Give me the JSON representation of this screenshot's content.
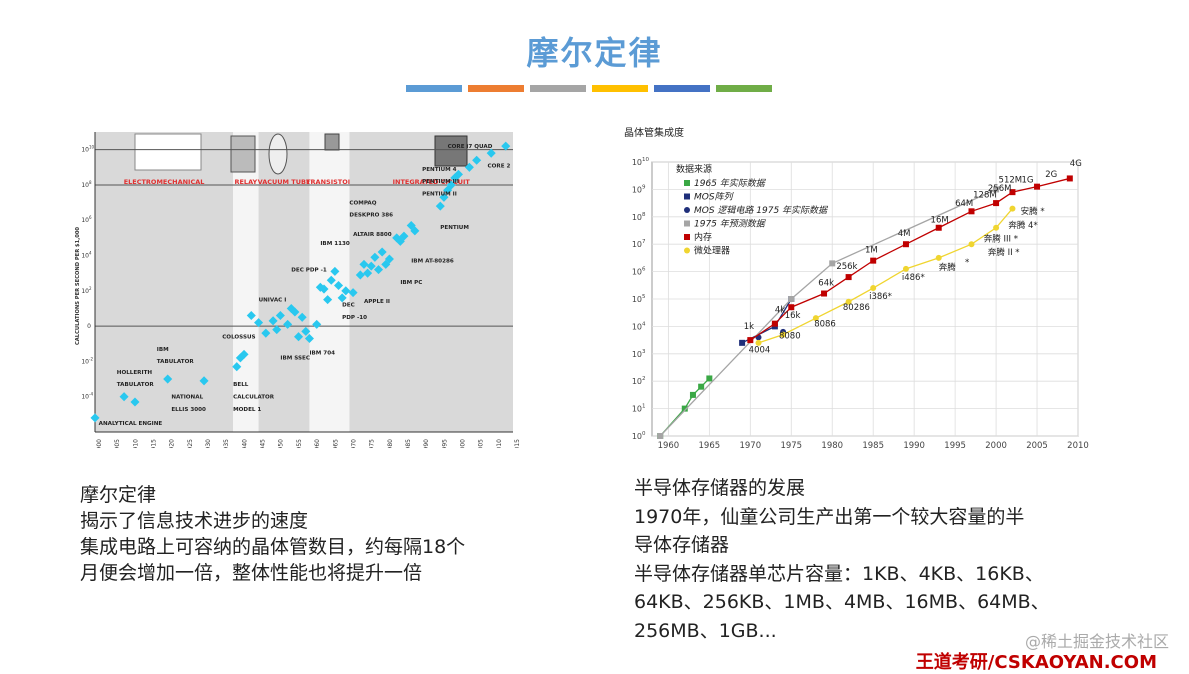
{
  "slide": {
    "title": "摩尔定律",
    "accent_colors": [
      "#5b9bd5",
      "#ed7d31",
      "#a5a5a5",
      "#ffc000",
      "#4472c4",
      "#70ad47"
    ]
  },
  "left_caption": {
    "lines": [
      "摩尔定律",
      "揭示了信息技术进步的速度",
      "集成电路上可容纳的晶体管数目，约每隔18个",
      "月便会增加一倍，整体性能也将提升一倍"
    ]
  },
  "right_caption": {
    "lines": [
      "半导体存储器的发展",
      "1970年，仙童公司生产出第一个较大容量的半",
      "导体存储器",
      "半导体存储器单芯片容量：1KB、4KB、16KB、",
      "64KB、256KB、1MB、4MB、16MB、64MB、",
      "256MB、1GB..."
    ]
  },
  "watermark": "@稀土掘金技术社区",
  "brand": "王道考研/CSKAOYAN.COM",
  "chart_data": [
    {
      "type": "scatter",
      "title": "",
      "ylabel": "CALCULATIONS PER SECOND PER $1,000",
      "xlabel": "",
      "x_ticks": [
        "1900",
        "1905",
        "1910",
        "1915",
        "1920",
        "1925",
        "1930",
        "1935",
        "1940",
        "1945",
        "1950",
        "1955",
        "1960",
        "1965",
        "1970",
        "1975",
        "1980",
        "1985",
        "1990",
        "1995",
        "2000",
        "2005",
        "2010",
        "2015"
      ],
      "y_tick_exponents": [
        "10",
        "8",
        "6",
        "4",
        "2",
        "",
        "-2",
        "-4"
      ],
      "y_tick_zero_label": "0",
      "eras": [
        {
          "label": "ELECTROMECHANICAL",
          "x_start": 1900,
          "x_end": 1938,
          "shaded": true
        },
        {
          "label": "RELAY",
          "x_start": 1938,
          "x_end": 1945,
          "shaded": false
        },
        {
          "label": "VACUUM TUBE",
          "x_start": 1945,
          "x_end": 1959,
          "shaded": true
        },
        {
          "label": "TRANSISTOR",
          "x_start": 1959,
          "x_end": 1970,
          "shaded": false
        },
        {
          "label": "INTEGRATED CIRCUIT",
          "x_start": 1970,
          "x_end": 2015,
          "shaded": true
        }
      ],
      "points": [
        [
          1900,
          -5.2
        ],
        [
          1908,
          -4.0
        ],
        [
          1911,
          -4.3
        ],
        [
          1920,
          -3.0
        ],
        [
          1930,
          -3.1
        ],
        [
          1939,
          -2.3
        ],
        [
          1940,
          -1.8
        ],
        [
          1941,
          -1.6
        ],
        [
          1943,
          0.6
        ],
        [
          1945,
          0.2
        ],
        [
          1947,
          -0.4
        ],
        [
          1949,
          0.3
        ],
        [
          1950,
          -0.2
        ],
        [
          1951,
          0.6
        ],
        [
          1953,
          0.1
        ],
        [
          1954,
          1.0
        ],
        [
          1955,
          0.8
        ],
        [
          1956,
          -0.6
        ],
        [
          1957,
          0.5
        ],
        [
          1958,
          -0.3
        ],
        [
          1959,
          -0.7
        ],
        [
          1961,
          0.1
        ],
        [
          1962,
          2.2
        ],
        [
          1963,
          2.1
        ],
        [
          1964,
          1.5
        ],
        [
          1965,
          2.6
        ],
        [
          1966,
          3.1
        ],
        [
          1967,
          2.3
        ],
        [
          1968,
          1.6
        ],
        [
          1969,
          2.0
        ],
        [
          1971,
          1.9
        ],
        [
          1973,
          2.9
        ],
        [
          1974,
          3.5
        ],
        [
          1975,
          3.0
        ],
        [
          1976,
          3.4
        ],
        [
          1977,
          3.9
        ],
        [
          1978,
          3.2
        ],
        [
          1979,
          4.2
        ],
        [
          1980,
          3.5
        ],
        [
          1981,
          3.8
        ],
        [
          1983,
          5.0
        ],
        [
          1984,
          4.8
        ],
        [
          1985,
          5.1
        ],
        [
          1987,
          5.7
        ],
        [
          1988,
          5.4
        ],
        [
          1995,
          6.8
        ],
        [
          1996,
          7.3
        ],
        [
          1997,
          7.7
        ],
        [
          1998,
          8.0
        ],
        [
          1999,
          8.4
        ],
        [
          2000,
          8.6
        ],
        [
          2003,
          9.0
        ],
        [
          2005,
          9.4
        ],
        [
          2009,
          9.8
        ],
        [
          2013,
          10.2
        ]
      ],
      "annotations": [
        {
          "text": "ANALYTICAL ENGINE",
          "x": 1901,
          "y": -5.6
        },
        {
          "text": "HOLLERITH",
          "x": 1906,
          "y": -2.7
        },
        {
          "text": "TABULATOR",
          "x": 1906,
          "y": -3.4
        },
        {
          "text": "IBM",
          "x": 1917,
          "y": -1.4
        },
        {
          "text": "TABULATOR",
          "x": 1917,
          "y": -2.1
        },
        {
          "text": "NATIONAL",
          "x": 1921,
          "y": -4.1
        },
        {
          "text": "ELLIS 3000",
          "x": 1921,
          "y": -4.8
        },
        {
          "text": "COLOSSUS",
          "x": 1935,
          "y": -0.7
        },
        {
          "text": "BELL",
          "x": 1938,
          "y": -3.4
        },
        {
          "text": "CALCULATOR",
          "x": 1938,
          "y": -4.1
        },
        {
          "text": "MODEL 1",
          "x": 1938,
          "y": -4.8
        },
        {
          "text": "UNIVAC I",
          "x": 1945,
          "y": 1.4
        },
        {
          "text": "IBM SSEC",
          "x": 1951,
          "y": -1.9
        },
        {
          "text": "IBM 704",
          "x": 1959,
          "y": -1.6
        },
        {
          "text": "DEC PDP -1",
          "x": 1954,
          "y": 3.1
        },
        {
          "text": "IBM 1130",
          "x": 1962,
          "y": 4.6
        },
        {
          "text": "DEC",
          "x": 1968,
          "y": 1.1
        },
        {
          "text": "PDP -10",
          "x": 1968,
          "y": 0.4
        },
        {
          "text": "ALTAIR 8800",
          "x": 1971,
          "y": 5.1
        },
        {
          "text": "COMPAQ",
          "x": 1970,
          "y": 6.9
        },
        {
          "text": "DESKPRO 386",
          "x": 1970,
          "y": 6.2
        },
        {
          "text": "APPLE II",
          "x": 1974,
          "y": 1.3
        },
        {
          "text": "IBM PC",
          "x": 1984,
          "y": 2.4
        },
        {
          "text": "IBM AT-80286",
          "x": 1987,
          "y": 3.6
        },
        {
          "text": "PENTIUM",
          "x": 1995,
          "y": 5.5
        },
        {
          "text": "PENTIUM 4",
          "x": 1990,
          "y": 8.8
        },
        {
          "text": "PENTIUM III",
          "x": 1990,
          "y": 8.1
        },
        {
          "text": "PENTIUM II",
          "x": 1990,
          "y": 7.4
        },
        {
          "text": "CORE i7 QUAD",
          "x": 1997,
          "y": 10.1
        },
        {
          "text": "CORE 2",
          "x": 2008,
          "y": 9.0
        }
      ]
    },
    {
      "type": "line",
      "title": "晶体管集成度",
      "xlabel": "",
      "ylabel": "",
      "xlim": [
        1958,
        2010
      ],
      "ylim_log10": [
        0,
        10
      ],
      "x_ticks": [
        1960,
        1965,
        1970,
        1975,
        1980,
        1985,
        1990,
        1995,
        2000,
        2005,
        2010
      ],
      "y_tick_exponents": [
        0,
        1,
        2,
        3,
        4,
        5,
        6,
        7,
        8,
        9,
        10
      ],
      "legend_title": "数据来源",
      "series": [
        {
          "name": "1965 年实际数据",
          "color": "#3aa845",
          "marker": "square",
          "x": [
            1959,
            1962,
            1963,
            1964,
            1965
          ],
          "log10_y": [
            0,
            1,
            1.5,
            1.8,
            2.1
          ]
        },
        {
          "name": "MOS阵列",
          "color": "#1f2f7a",
          "marker": "square",
          "x": [
            1969,
            1973,
            1975
          ],
          "log10_y": [
            3.4,
            4,
            5
          ]
        },
        {
          "name": "MOS 逻辑电路  1975 年实际数据",
          "color": "#1f2f7a",
          "marker": "circle",
          "x": [
            1971,
            1974
          ],
          "log10_y": [
            3.6,
            3.8
          ]
        },
        {
          "name": "1975 年预测数据",
          "color": "#a5a5a5",
          "marker": "square",
          "x": [
            1959,
            1975,
            1980,
            2000
          ],
          "log10_y": [
            0,
            5,
            6.3,
            9.0
          ]
        },
        {
          "name": "内存",
          "color": "#c00000",
          "marker": "square",
          "x": [
            1970,
            1973,
            1975,
            1979,
            1982,
            1985,
            1989,
            1993,
            1997,
            2000,
            2002,
            2005,
            2009
          ],
          "log10_y": [
            3.5,
            4.1,
            4.7,
            5.2,
            5.8,
            6.4,
            7.0,
            7.6,
            8.2,
            8.5,
            8.9,
            9.1,
            9.4
          ]
        },
        {
          "name": "微处理器",
          "color": "#f0d530",
          "marker": "circle",
          "x": [
            1971,
            1974,
            1978,
            1982,
            1985,
            1989,
            1993,
            1997,
            2000,
            2002
          ],
          "log10_y": [
            3.4,
            3.7,
            4.3,
            4.9,
            5.4,
            6.1,
            6.5,
            7.0,
            7.6,
            8.3
          ]
        }
      ],
      "annotations": [
        {
          "text": "1k",
          "x": 1969.2,
          "y": 3.9
        },
        {
          "text": "4k",
          "x": 1973,
          "y": 4.5
        },
        {
          "text": "16k",
          "x": 1974.2,
          "y": 4.3
        },
        {
          "text": "64k",
          "x": 1978.3,
          "y": 5.5
        },
        {
          "text": "256k",
          "x": 1980.5,
          "y": 6.1
        },
        {
          "text": "1M",
          "x": 1984,
          "y": 6.7
        },
        {
          "text": "4M",
          "x": 1988,
          "y": 7.3
        },
        {
          "text": "16M",
          "x": 1992,
          "y": 7.8
        },
        {
          "text": "64M",
          "x": 1995,
          "y": 8.4
        },
        {
          "text": "128M",
          "x": 1997.2,
          "y": 8.7
        },
        {
          "text": "256M",
          "x": 1999,
          "y": 8.95
        },
        {
          "text": "512M",
          "x": 2000.3,
          "y": 9.25
        },
        {
          "text": "1G",
          "x": 2003.1,
          "y": 9.25
        },
        {
          "text": "2G",
          "x": 2006,
          "y": 9.45
        },
        {
          "text": "4G",
          "x": 2009,
          "y": 9.85
        },
        {
          "text": "4004",
          "x": 1969.8,
          "y": 3.05
        },
        {
          "text": "8080",
          "x": 1973.5,
          "y": 3.55
        },
        {
          "text": "8086",
          "x": 1977.8,
          "y": 4.0
        },
        {
          "text": "80286",
          "x": 1981.3,
          "y": 4.6
        },
        {
          "text": "i386*",
          "x": 1984.5,
          "y": 5.0
        },
        {
          "text": "i486*",
          "x": 1988.5,
          "y": 5.7
        },
        {
          "text": "奔腾",
          "x": 1993,
          "y": 6.05
        },
        {
          "text": "*",
          "x": 1996.2,
          "y": 6.25
        },
        {
          "text": "奔腾 II *",
          "x": 1999,
          "y": 6.6
        },
        {
          "text": "奔腾 III *",
          "x": 1998.5,
          "y": 7.1
        },
        {
          "text": "奔腾 4*",
          "x": 2001.5,
          "y": 7.6
        },
        {
          "text": "安腾 *",
          "x": 2003,
          "y": 8.1
        }
      ]
    }
  ]
}
